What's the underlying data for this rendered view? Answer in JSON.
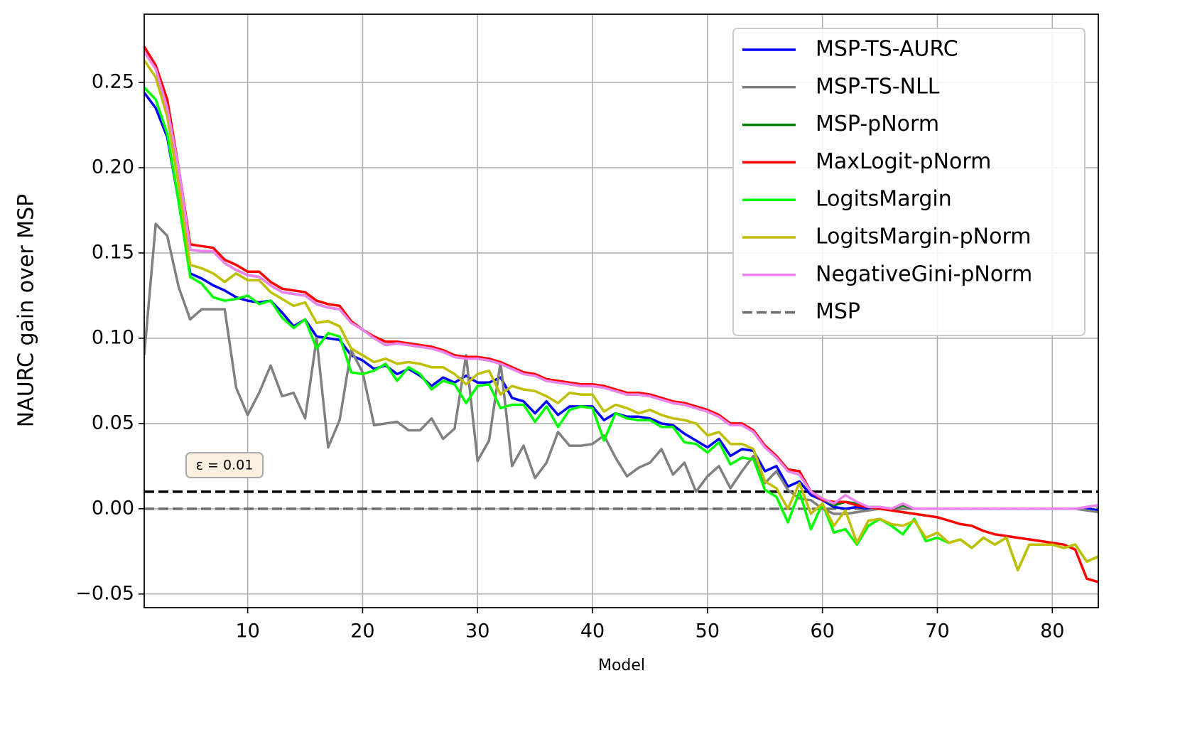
{
  "chart_data": {
    "type": "line",
    "xlabel": "Model",
    "ylabel": "NAURC gain over MSP",
    "xlim": [
      1,
      84
    ],
    "ylim": [
      -0.058,
      0.29
    ],
    "xticks": [
      10,
      20,
      30,
      40,
      50,
      60,
      70,
      80
    ],
    "yticks": [
      {
        "value": -0.05,
        "label": "−0.05"
      },
      {
        "value": 0,
        "label": "0.00"
      },
      0.05,
      {
        "value": 0.1,
        "label": "0.10"
      },
      0.15,
      {
        "value": 0.2,
        "label": "0.20"
      },
      0.25
    ],
    "grid": true,
    "legend": "upper right",
    "x": [
      1,
      2,
      3,
      4,
      5,
      6,
      7,
      8,
      9,
      10,
      11,
      12,
      13,
      14,
      15,
      16,
      17,
      18,
      19,
      20,
      21,
      22,
      23,
      24,
      25,
      26,
      27,
      28,
      29,
      30,
      31,
      32,
      33,
      34,
      35,
      36,
      37,
      38,
      39,
      40,
      41,
      42,
      43,
      44,
      45,
      46,
      47,
      48,
      49,
      50,
      51,
      52,
      53,
      54,
      55,
      56,
      57,
      58,
      59,
      60,
      61,
      62,
      63,
      64,
      65,
      66,
      67,
      68,
      69,
      70,
      71,
      72,
      73,
      74,
      75,
      76,
      77,
      78,
      79,
      80,
      81,
      82,
      83,
      84
    ],
    "series": [
      {
        "name": "MSP-TS-AURC",
        "color": "#0000ff",
        "values": [
          0.244,
          0.235,
          0.218,
          0.18,
          0.138,
          0.135,
          0.131,
          0.128,
          0.124,
          0.122,
          0.121,
          0.122,
          0.115,
          0.107,
          0.111,
          0.101,
          0.1,
          0.099,
          0.09,
          0.087,
          0.082,
          0.084,
          0.079,
          0.082,
          0.078,
          0.072,
          0.077,
          0.074,
          0.078,
          0.074,
          0.074,
          0.077,
          0.065,
          0.063,
          0.056,
          0.063,
          0.055,
          0.06,
          0.06,
          0.06,
          0.052,
          0.056,
          0.054,
          0.054,
          0.053,
          0.05,
          0.049,
          0.044,
          0.04,
          0.036,
          0.041,
          0.031,
          0.035,
          0.034,
          0.022,
          0.025,
          0.013,
          0.016,
          0.008,
          0.005,
          0.001,
          0,
          0.001,
          0,
          0,
          0,
          0,
          0,
          0,
          0,
          0,
          0,
          0,
          0,
          0,
          0,
          0,
          0,
          0,
          0,
          0,
          0,
          0,
          -0.001
        ]
      },
      {
        "name": "MSP-TS-NLL",
        "color": "#808080",
        "values": [
          0.09,
          0.167,
          0.16,
          0.13,
          0.111,
          0.117,
          0.117,
          0.117,
          0.071,
          0.055,
          0.068,
          0.084,
          0.066,
          0.068,
          0.053,
          0.1,
          0.036,
          0.052,
          0.093,
          0.08,
          0.049,
          0.05,
          0.051,
          0.046,
          0.046,
          0.053,
          0.041,
          0.047,
          0.09,
          0.028,
          0.04,
          0.086,
          0.025,
          0.037,
          0.018,
          0.027,
          0.045,
          0.037,
          0.037,
          0.038,
          0.043,
          0.03,
          0.019,
          0.024,
          0.027,
          0.035,
          0.02,
          0.027,
          0.01,
          0.019,
          0.025,
          0.012,
          0.022,
          0.031,
          0.015,
          0.022,
          0.011,
          0.006,
          0.005,
          0,
          -0.003,
          -0.003,
          -0.002,
          -0.001,
          0,
          0,
          0,
          0,
          0,
          0,
          0,
          0,
          0,
          0,
          0,
          0,
          0,
          0,
          0,
          0,
          0,
          0,
          -0.001,
          -0.002
        ]
      },
      {
        "name": "MSP-pNorm",
        "color": "#008000",
        "values": [
          0.268,
          0.258,
          0.235,
          0.2,
          0.152,
          0.151,
          0.151,
          0.144,
          0.14,
          0.137,
          0.136,
          0.131,
          0.127,
          0.126,
          0.125,
          0.12,
          0.118,
          0.117,
          0.109,
          0.105,
          0.1,
          0.096,
          0.097,
          0.096,
          0.095,
          0.094,
          0.092,
          0.089,
          0.088,
          0.088,
          0.087,
          0.085,
          0.082,
          0.079,
          0.078,
          0.075,
          0.074,
          0.073,
          0.072,
          0.072,
          0.071,
          0.069,
          0.067,
          0.067,
          0.066,
          0.064,
          0.062,
          0.061,
          0.059,
          0.057,
          0.054,
          0.049,
          0.049,
          0.045,
          0.036,
          0.03,
          0.022,
          0.02,
          0.01,
          0.006,
          0.002,
          0.004,
          0.003,
          0.001,
          0.001,
          0,
          0.002,
          0,
          0,
          0,
          0,
          0,
          0,
          0,
          0,
          0,
          0,
          0,
          0,
          0,
          0,
          0,
          0.001,
          0.002
        ]
      },
      {
        "name": "MaxLogit-pNorm",
        "color": "#ff0000",
        "values": [
          0.271,
          0.26,
          0.24,
          0.2,
          0.155,
          0.154,
          0.153,
          0.146,
          0.143,
          0.139,
          0.139,
          0.133,
          0.129,
          0.128,
          0.127,
          0.122,
          0.12,
          0.119,
          0.11,
          0.105,
          0.101,
          0.098,
          0.098,
          0.097,
          0.096,
          0.095,
          0.093,
          0.09,
          0.089,
          0.089,
          0.088,
          0.086,
          0.083,
          0.08,
          0.079,
          0.076,
          0.075,
          0.074,
          0.073,
          0.073,
          0.072,
          0.07,
          0.068,
          0.068,
          0.067,
          0.065,
          0.063,
          0.062,
          0.06,
          0.058,
          0.055,
          0.05,
          0.05,
          0.046,
          0.037,
          0.031,
          0.023,
          0.022,
          0.01,
          0.005,
          0.004,
          0.004,
          0.002,
          0.001,
          0,
          -0.001,
          -0.002,
          -0.003,
          -0.004,
          -0.005,
          -0.007,
          -0.009,
          -0.01,
          -0.013,
          -0.015,
          -0.016,
          -0.017,
          -0.018,
          -0.019,
          -0.02,
          -0.021,
          -0.024,
          -0.041,
          -0.043
        ]
      },
      {
        "name": "LogitsMargin",
        "color": "#00ff00",
        "values": [
          0.247,
          0.24,
          0.22,
          0.18,
          0.136,
          0.132,
          0.124,
          0.122,
          0.123,
          0.125,
          0.12,
          0.122,
          0.112,
          0.106,
          0.111,
          0.094,
          0.103,
          0.101,
          0.08,
          0.079,
          0.081,
          0.085,
          0.075,
          0.083,
          0.079,
          0.07,
          0.075,
          0.073,
          0.062,
          0.072,
          0.073,
          0.059,
          0.061,
          0.061,
          0.051,
          0.06,
          0.048,
          0.058,
          0.06,
          0.059,
          0.04,
          0.056,
          0.053,
          0.052,
          0.052,
          0.048,
          0.048,
          0.039,
          0.038,
          0.033,
          0.039,
          0.026,
          0.03,
          0.029,
          0.011,
          0.007,
          -0.008,
          0.01,
          -0.012,
          0.003,
          -0.014,
          -0.012,
          -0.021,
          -0.01,
          -0.006,
          -0.01,
          -0.015,
          -0.006,
          -0.019,
          -0.017,
          -0.02,
          -0.018,
          -0.023,
          -0.017,
          -0.021,
          -0.017,
          -0.036,
          -0.021,
          -0.021,
          -0.021,
          -0.023,
          -0.021,
          -0.031,
          -0.028
        ]
      },
      {
        "name": "LogitsMargin-pNorm",
        "color": "#bfbf00",
        "values": [
          0.263,
          0.253,
          0.23,
          0.19,
          0.143,
          0.141,
          0.138,
          0.133,
          0.138,
          0.134,
          0.134,
          0.127,
          0.123,
          0.119,
          0.121,
          0.109,
          0.11,
          0.107,
          0.094,
          0.09,
          0.086,
          0.088,
          0.085,
          0.086,
          0.085,
          0.083,
          0.083,
          0.079,
          0.073,
          0.079,
          0.081,
          0.067,
          0.072,
          0.07,
          0.069,
          0.066,
          0.062,
          0.068,
          0.067,
          0.067,
          0.057,
          0.061,
          0.059,
          0.056,
          0.058,
          0.055,
          0.053,
          0.052,
          0.05,
          0.043,
          0.045,
          0.038,
          0.038,
          0.035,
          0.016,
          0.012,
          0,
          0.015,
          -0.003,
          0.003,
          -0.01,
          -0.001,
          -0.02,
          -0.007,
          -0.006,
          -0.009,
          -0.01,
          -0.007,
          -0.017,
          -0.014,
          -0.02,
          -0.018,
          -0.023,
          -0.017,
          -0.021,
          -0.017,
          -0.036,
          -0.021,
          -0.021,
          -0.021,
          -0.023,
          -0.021,
          -0.031,
          -0.028
        ]
      },
      {
        "name": "NegativeGini-pNorm",
        "color": "#ee82ee",
        "values": [
          0.268,
          0.258,
          0.235,
          0.2,
          0.152,
          0.151,
          0.151,
          0.144,
          0.14,
          0.137,
          0.136,
          0.131,
          0.127,
          0.126,
          0.125,
          0.12,
          0.118,
          0.117,
          0.109,
          0.105,
          0.1,
          0.096,
          0.097,
          0.096,
          0.095,
          0.094,
          0.092,
          0.089,
          0.088,
          0.088,
          0.087,
          0.085,
          0.082,
          0.079,
          0.078,
          0.075,
          0.074,
          0.073,
          0.072,
          0.072,
          0.071,
          0.069,
          0.067,
          0.067,
          0.066,
          0.064,
          0.062,
          0.061,
          0.059,
          0.057,
          0.054,
          0.049,
          0.049,
          0.045,
          0.036,
          0.03,
          0.022,
          0.02,
          0.01,
          0.006,
          0.003,
          0.008,
          0.004,
          0.001,
          0.001,
          0,
          0.003,
          0,
          0,
          0,
          0,
          0,
          0,
          0,
          0,
          0,
          0,
          0,
          0,
          0,
          0,
          0,
          0.001,
          0.002
        ]
      }
    ],
    "hlines": [
      {
        "name": "MSP",
        "value": 0,
        "color": "#6e6e6e",
        "dash": true
      },
      {
        "value": 0.01,
        "color": "#000000",
        "dash": true,
        "annotation": "ε = 0.01"
      }
    ]
  }
}
